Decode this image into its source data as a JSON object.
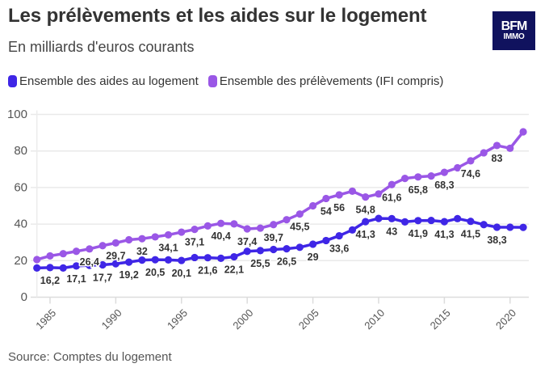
{
  "header": {
    "title": "Les prélèvements et les aides sur le logement",
    "subtitle": "En milliards d'euros courants"
  },
  "logo": {
    "line1": "BFM",
    "line2": "IMMO",
    "background": "#10125e"
  },
  "legend": [
    {
      "label": "Ensemble des aides au logement",
      "color": "#3f26e6"
    },
    {
      "label": "Ensemble des prélèvements (IFI compris)",
      "color": "#9a57e6"
    }
  ],
  "footer": {
    "source": "Source: Comptes du logement"
  },
  "chart_data": {
    "type": "line",
    "title": "Les prélèvements et les aides sur le logement",
    "subtitle": "En milliards d'euros courants",
    "xlabel": "",
    "ylabel": "",
    "x": [
      1984,
      1985,
      1986,
      1987,
      1988,
      1989,
      1990,
      1991,
      1992,
      1993,
      1994,
      1995,
      1996,
      1997,
      1998,
      1999,
      2000,
      2001,
      2002,
      2003,
      2004,
      2005,
      2006,
      2007,
      2008,
      2009,
      2010,
      2011,
      2012,
      2013,
      2014,
      2015,
      2016,
      2017,
      2018,
      2019,
      2020,
      2021
    ],
    "xlim": [
      1984,
      2021
    ],
    "ylim": [
      0,
      100
    ],
    "xticks": [
      1985,
      1990,
      1995,
      2000,
      2005,
      2010,
      2015,
      2020
    ],
    "yticks": [
      0,
      20,
      40,
      60,
      80,
      100
    ],
    "grid": true,
    "legend_position": "top-left",
    "series": [
      {
        "name": "Ensemble des prélèvements (IFI compris)",
        "color": "#9a57e6",
        "values": [
          20.6,
          22.6,
          23.8,
          25.1,
          26.4,
          28.2,
          29.7,
          31.4,
          32,
          33.0,
          34.1,
          35.6,
          37.1,
          39.0,
          40.4,
          40.1,
          37.4,
          37.8,
          39.7,
          42.4,
          45.5,
          50.0,
          54,
          56,
          58.0,
          54.8,
          56.5,
          61.6,
          65.0,
          65.8,
          66.3,
          68.3,
          70.8,
          74.6,
          79.0,
          83,
          81.5,
          90.5
        ],
        "data_labels": {
          "1988": "26,4",
          "1990": "29,7",
          "1992": "32",
          "1994": "34,1",
          "1996": "37,1",
          "1998": "40,4",
          "2000": "37,4",
          "2002": "39,7",
          "2004": "45,5",
          "2006": "54",
          "2007": "56",
          "2009": "54,8",
          "2011": "61,6",
          "2013": "65,8",
          "2015": "68,3",
          "2017": "74,6",
          "2019": "83"
        }
      },
      {
        "name": "Ensemble des aides au logement",
        "color": "#3f26e6",
        "values": [
          16.0,
          16.2,
          16.0,
          17.1,
          17.4,
          17.7,
          18.3,
          19.2,
          20.3,
          20.5,
          20.4,
          20.1,
          21.7,
          21.6,
          21.3,
          22.1,
          25.1,
          25.5,
          26.1,
          26.5,
          27.3,
          29,
          31.0,
          33.6,
          36.8,
          41.3,
          43.1,
          43,
          41.2,
          41.9,
          42.0,
          41.3,
          43.0,
          41.5,
          39.7,
          38.3,
          38.3,
          38.2
        ],
        "data_labels": {
          "1985": "16,2",
          "1987": "17,1",
          "1989": "17,7",
          "1991": "19,2",
          "1993": "20,5",
          "1995": "20,1",
          "1997": "21,6",
          "1999": "22,1",
          "2001": "25,5",
          "2003": "26,5",
          "2005": "29",
          "2007": "33,6",
          "2009": "41,3",
          "2011": "43",
          "2013": "41,9",
          "2015": "41,3",
          "2017": "41,5",
          "2019": "38,3"
        }
      }
    ]
  }
}
